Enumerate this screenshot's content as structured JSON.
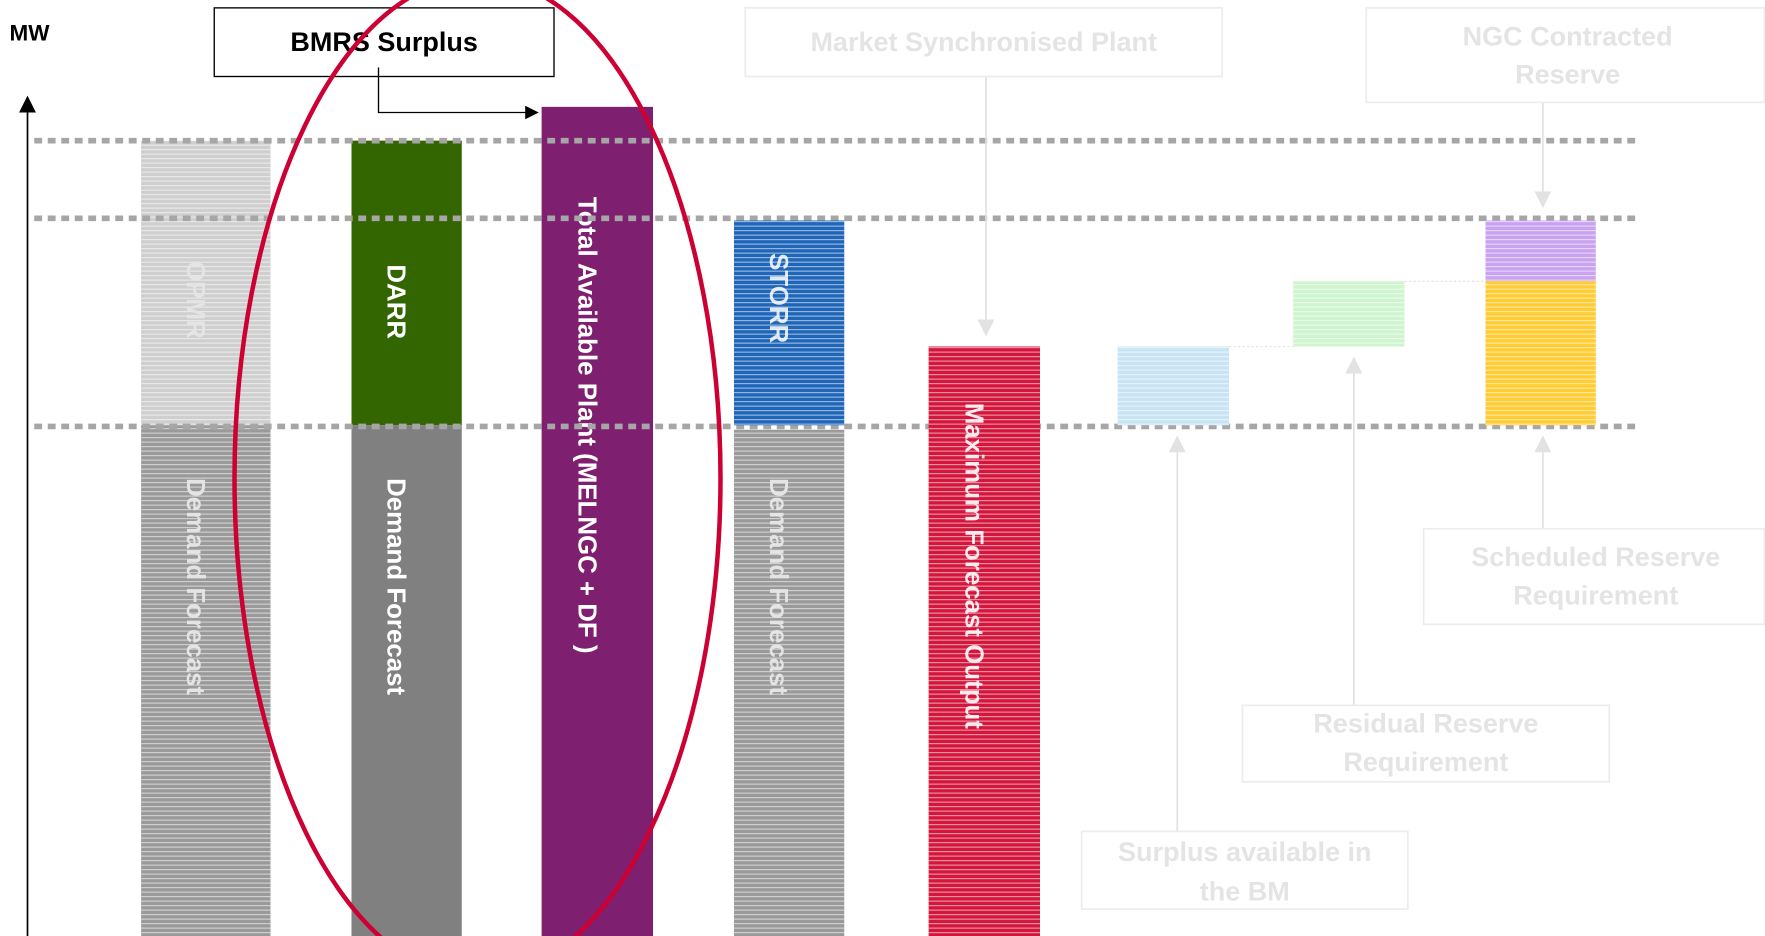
{
  "axis": {
    "label": "MW"
  },
  "callouts": {
    "bmrs_surplus": "BMRS Surplus",
    "market_synchronised_plant": "Market Synchronised Plant",
    "ngc_contracted_reserve": [
      "NGC Contracted",
      "Reserve"
    ],
    "scheduled_reserve_requirement": [
      "Scheduled Reserve",
      "Requirement"
    ],
    "residual_reserve_requirement": [
      "Residual Reserve",
      "Requirement"
    ],
    "surplus_available_in_bm": [
      "Surplus available in",
      "the BM"
    ]
  },
  "bars": [
    {
      "top": "OPMR",
      "bottom": "Demand Forecast"
    },
    {
      "top": "DARR",
      "bottom": "Demand Forecast"
    },
    {
      "label": "Total Available Plant (MELNGC + DF )"
    },
    {
      "top": "STORR",
      "bottom": "Demand Forecast"
    },
    {
      "label": "Maximum Forecast Output"
    }
  ]
}
